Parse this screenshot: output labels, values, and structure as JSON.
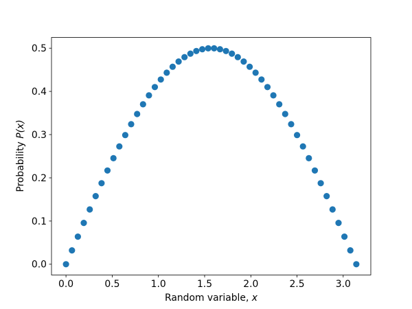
{
  "chart_data": {
    "type": "scatter",
    "title": "",
    "xlabel_prefix": "Random variable, ",
    "xlabel_var": "x",
    "ylabel_prefix": "Probability ",
    "ylabel_var": "P(x)",
    "x": [
      0.0,
      0.0641,
      0.1282,
      0.1923,
      0.2565,
      0.3206,
      0.3847,
      0.4488,
      0.5129,
      0.577,
      0.6411,
      0.7053,
      0.7694,
      0.8335,
      0.8976,
      0.9617,
      1.0258,
      1.0899,
      1.1541,
      1.2182,
      1.2823,
      1.3464,
      1.4105,
      1.4746,
      1.5387,
      1.6029,
      1.667,
      1.7311,
      1.7952,
      1.8593,
      1.9234,
      1.9875,
      2.0517,
      2.1158,
      2.1799,
      2.244,
      2.3081,
      2.3722,
      2.4363,
      2.5005,
      2.5646,
      2.6287,
      2.6928,
      2.7569,
      2.821,
      2.8851,
      2.9493,
      3.0134,
      3.0775,
      3.1416
    ],
    "y": [
      0.0,
      0.032,
      0.0639,
      0.0956,
      0.1268,
      0.1576,
      0.1876,
      0.2169,
      0.2454,
      0.2728,
      0.299,
      0.3241,
      0.3478,
      0.3701,
      0.3909,
      0.4101,
      0.4276,
      0.4433,
      0.4572,
      0.4692,
      0.4793,
      0.4875,
      0.4936,
      0.4977,
      0.4997,
      0.4997,
      0.4977,
      0.4936,
      0.4875,
      0.4793,
      0.4692,
      0.4572,
      0.4433,
      0.4276,
      0.4101,
      0.3909,
      0.3701,
      0.3478,
      0.3241,
      0.299,
      0.2728,
      0.2454,
      0.2169,
      0.1876,
      0.1576,
      0.1268,
      0.0956,
      0.0639,
      0.032,
      0.0
    ],
    "xticks": [
      0.0,
      0.5,
      1.0,
      1.5,
      2.0,
      2.5,
      3.0
    ],
    "xtick_labels": [
      "0.0",
      "0.5",
      "1.0",
      "1.5",
      "2.0",
      "2.5",
      "3.0"
    ],
    "yticks": [
      0.0,
      0.1,
      0.2,
      0.3,
      0.4,
      0.5
    ],
    "ytick_labels": [
      "0.0",
      "0.1",
      "0.2",
      "0.3",
      "0.4",
      "0.5"
    ],
    "xlim": [
      -0.1571,
      3.2987
    ],
    "ylim": [
      -0.025,
      0.525
    ],
    "grid": false,
    "legend": null,
    "marker_color": "#1f77b4",
    "marker_radius_px": 4.6,
    "axis_color": "#000000"
  }
}
